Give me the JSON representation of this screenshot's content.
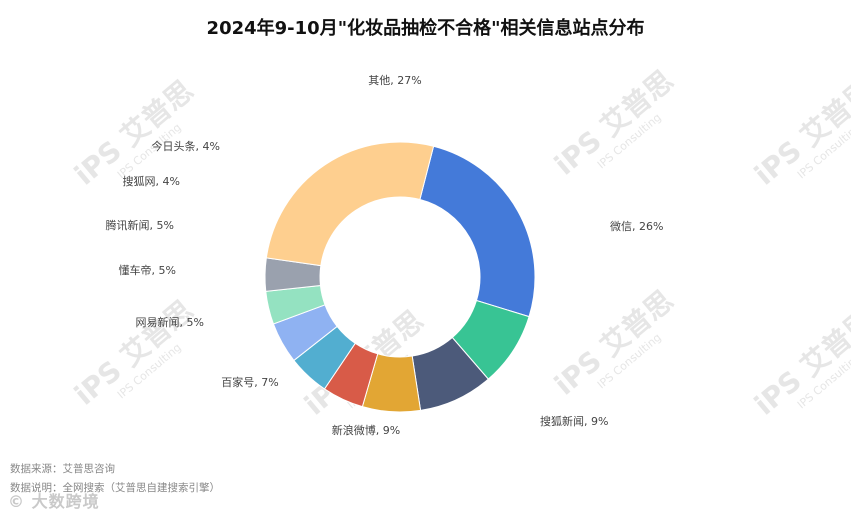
{
  "chart_data": {
    "type": "pie",
    "title": "2024年9-10月\"化妆品抽检不合格\"相关信息站点分布",
    "categories": [
      "其他",
      "微信",
      "搜狐新闻",
      "新浪微博",
      "百家号",
      "网易新闻",
      "懂车帝",
      "腾讯新闻",
      "搜狐网",
      "今日头条"
    ],
    "values": [
      27,
      26,
      9,
      9,
      7,
      5,
      5,
      5,
      4,
      4
    ],
    "unit": "%",
    "labels": [
      "其他, 27%",
      "微信, 26%",
      "搜狐新闻, 9%",
      "新浪微博, 9%",
      "百家号, 7%",
      "网易新闻, 5%",
      "懂车帝, 5%",
      "腾讯新闻, 5%",
      "搜狐网, 4%",
      "今日头条, 4%"
    ],
    "colors": [
      "#fecf8f",
      "#447ad9",
      "#38c494",
      "#4c5a7a",
      "#e2a634",
      "#d85b48",
      "#52aed0",
      "#8fb2f2",
      "#94e2c1",
      "#9aa1ae"
    ],
    "donut": true,
    "legend": "none"
  },
  "footer": {
    "source": "数据来源：艾普思咨询",
    "note": "数据说明：全网搜索（艾普思自建搜索引擎）"
  },
  "watermark": {
    "text": "iPS 艾普思",
    "sub": "IPS Consulting"
  },
  "logo": {
    "text": "© 大数跨境"
  }
}
